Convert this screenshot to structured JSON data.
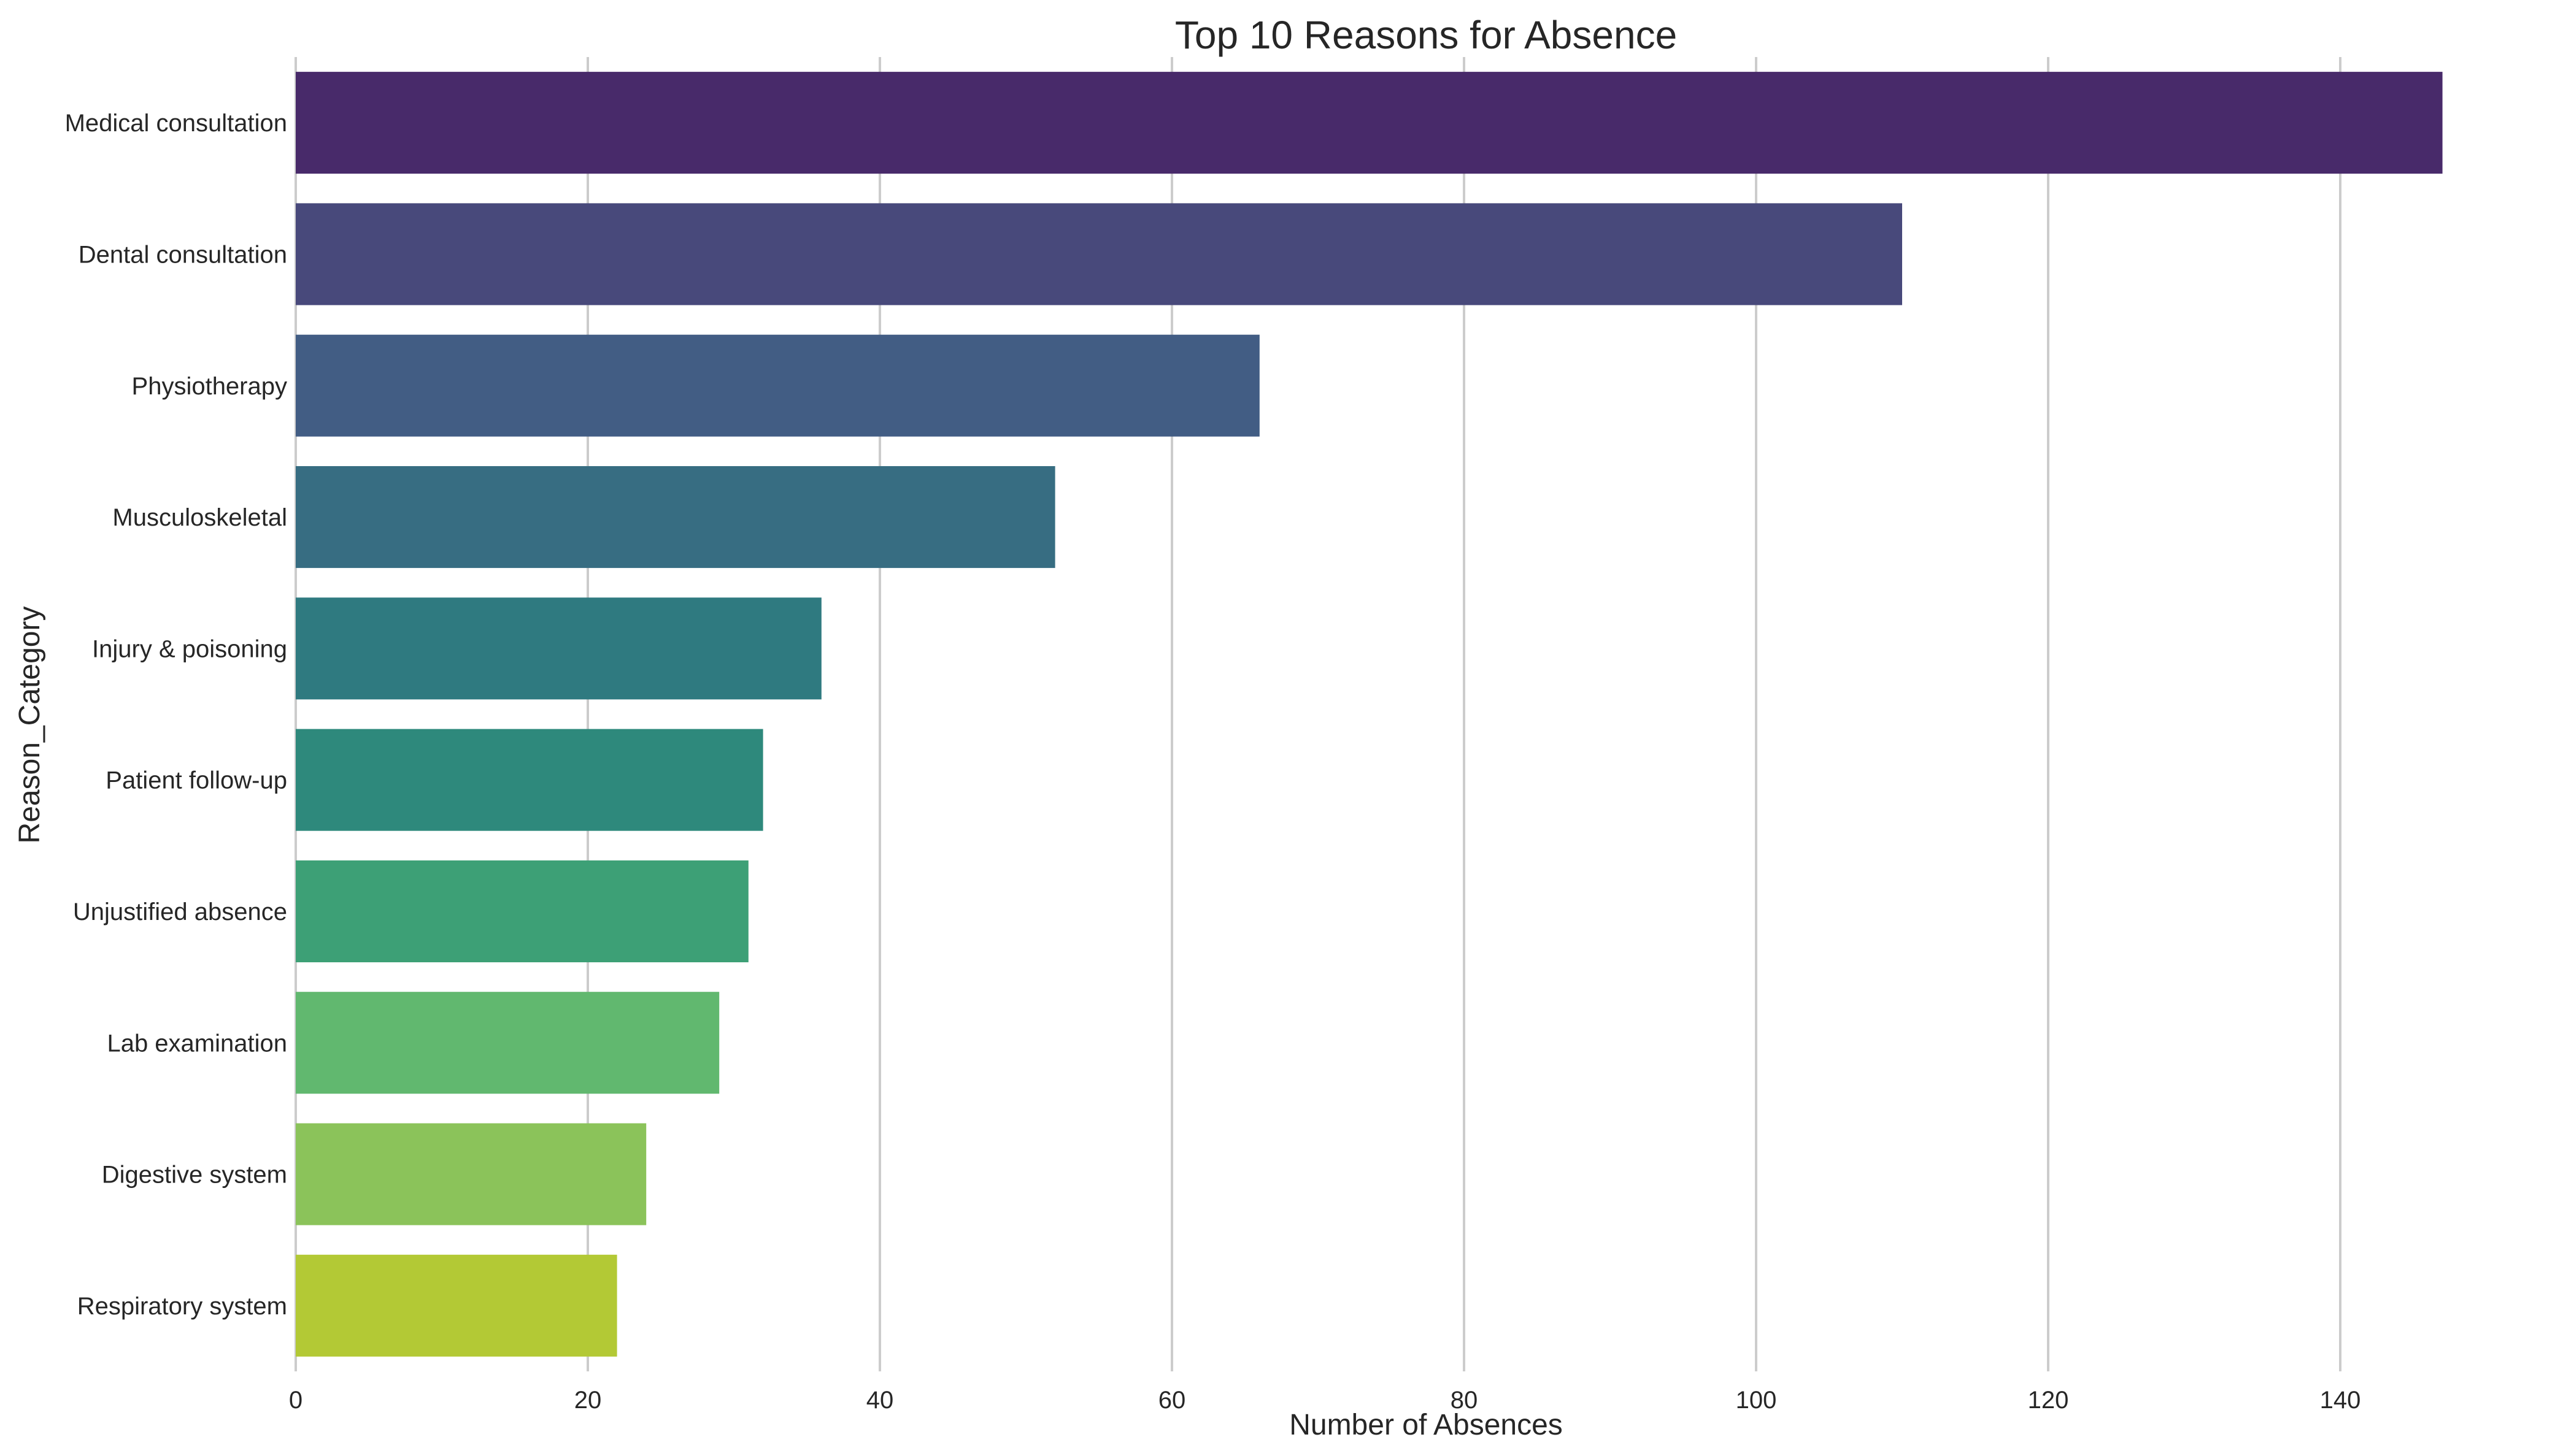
{
  "chart_data": {
    "type": "bar",
    "orientation": "horizontal",
    "title": "Top 10 Reasons for Absence",
    "xlabel": "Number of Absences",
    "ylabel": "Reason_Category",
    "xlim": [
      0,
      150
    ],
    "xticks": [
      0,
      20,
      40,
      60,
      80,
      100,
      120,
      140
    ],
    "grid": true,
    "legend": "none",
    "categories": [
      "Medical consultation",
      "Dental consultation",
      "Physiotherapy",
      "Musculoskeletal",
      "Injury & poisoning",
      "Patient follow-up",
      "Unjustified absence",
      "Lab examination",
      "Digestive system",
      "Respiratory system"
    ],
    "values": [
      147,
      110,
      66,
      52,
      36,
      32,
      31,
      29,
      24,
      22
    ],
    "colors": [
      "#482a6a",
      "#48497b",
      "#425d84",
      "#376d82",
      "#2f7a80",
      "#2e897c",
      "#3da076",
      "#61b86f",
      "#8bc35a",
      "#b3c935"
    ]
  }
}
